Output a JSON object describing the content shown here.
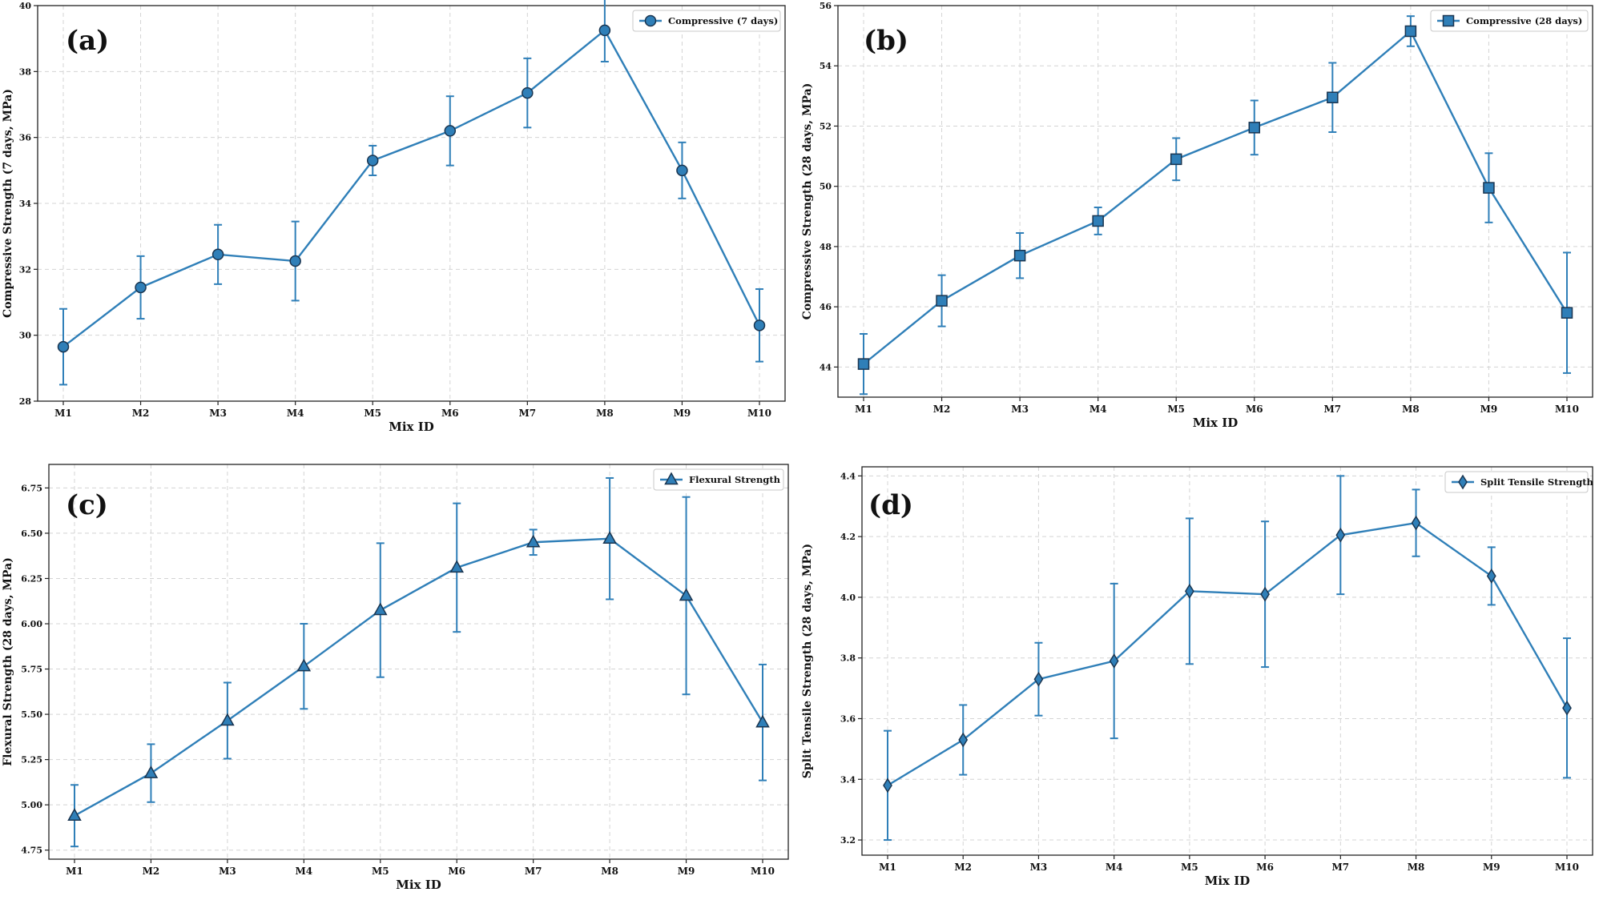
{
  "colors": {
    "series": "#2f7fb8",
    "marker": "#2f7fb8",
    "grid": "#d4d4d4",
    "frame": "#222222"
  },
  "chart_data": [
    {
      "panel_label": "(a)",
      "type": "line",
      "marker": "circle",
      "categories": [
        "M1",
        "M2",
        "M3",
        "M4",
        "M5",
        "M6",
        "M7",
        "M8",
        "M9",
        "M10"
      ],
      "values": [
        29.65,
        31.45,
        32.45,
        32.25,
        35.3,
        36.2,
        37.35,
        39.25,
        35.0,
        30.3
      ],
      "errors": [
        1.15,
        0.95,
        0.9,
        1.2,
        0.45,
        1.05,
        1.05,
        0.95,
        0.85,
        1.1
      ],
      "legend": "Compressive (7 days)",
      "legend_position": "top-right",
      "xlabel": "Mix ID",
      "ylabel": "Compressive Strength (7 days, MPa)",
      "ylim": [
        28,
        40
      ],
      "yticks": [
        "28",
        "30",
        "32",
        "34",
        "36",
        "38",
        "40"
      ],
      "grid": true
    },
    {
      "panel_label": "(b)",
      "type": "line",
      "marker": "square",
      "categories": [
        "M1",
        "M2",
        "M3",
        "M4",
        "M5",
        "M6",
        "M7",
        "M8",
        "M9",
        "M10"
      ],
      "values": [
        44.1,
        46.2,
        47.7,
        48.85,
        50.9,
        51.95,
        52.95,
        55.15,
        49.95,
        45.8
      ],
      "errors": [
        1.0,
        0.85,
        0.75,
        0.45,
        0.7,
        0.9,
        1.15,
        0.5,
        1.15,
        2.0
      ],
      "legend": "Compressive (28 days)",
      "legend_position": "top-right",
      "xlabel": "Mix ID",
      "ylabel": "Compressive Strength (28 days, MPa)",
      "ylim": [
        43,
        56
      ],
      "yticks": [
        "44",
        "46",
        "48",
        "50",
        "52",
        "54",
        "56"
      ],
      "grid": true
    },
    {
      "panel_label": "(c)",
      "type": "line",
      "marker": "triangle",
      "categories": [
        "M1",
        "M2",
        "M3",
        "M4",
        "M5",
        "M6",
        "M7",
        "M8",
        "M9",
        "M10"
      ],
      "values": [
        4.94,
        5.175,
        5.465,
        5.765,
        6.075,
        6.31,
        6.45,
        6.47,
        6.155,
        5.455
      ],
      "errors": [
        0.17,
        0.16,
        0.21,
        0.235,
        0.37,
        0.355,
        0.07,
        0.335,
        0.545,
        0.32
      ],
      "legend": "Flexural Strength",
      "legend_position": "top-right",
      "xlabel": "Mix ID",
      "ylabel": "Flexural Strength (28 days, MPa)",
      "ylim": [
        4.7,
        6.88
      ],
      "yticks": [
        "4.75",
        "5.00",
        "5.25",
        "5.50",
        "5.75",
        "6.00",
        "6.25",
        "6.50",
        "6.75"
      ],
      "grid": true
    },
    {
      "panel_label": "(d)",
      "type": "line",
      "marker": "diamond",
      "categories": [
        "M1",
        "M2",
        "M3",
        "M4",
        "M5",
        "M6",
        "M7",
        "M8",
        "M9",
        "M10"
      ],
      "values": [
        3.38,
        3.53,
        3.73,
        3.79,
        4.02,
        4.01,
        4.205,
        4.245,
        4.07,
        3.635
      ],
      "errors": [
        0.18,
        0.115,
        0.12,
        0.255,
        0.24,
        0.24,
        0.195,
        0.11,
        0.095,
        0.23
      ],
      "legend": "Split Tensile Strength",
      "legend_position": "top-right",
      "xlabel": "Mix ID",
      "ylabel": "Split Tensile Strength (28 days, MPa)",
      "ylim": [
        3.15,
        4.43
      ],
      "yticks": [
        "3.2",
        "3.4",
        "3.6",
        "3.8",
        "4.0",
        "4.2",
        "4.4"
      ],
      "grid": true
    }
  ]
}
